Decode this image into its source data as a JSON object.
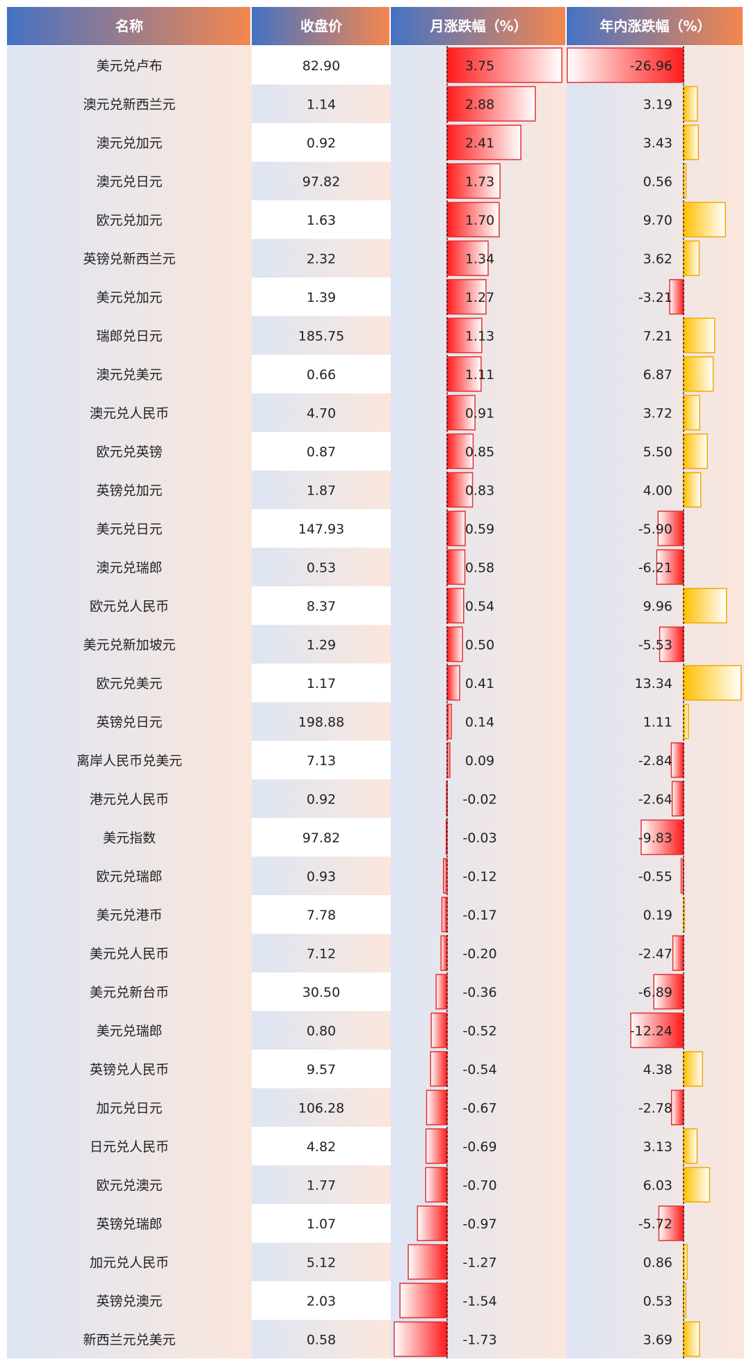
{
  "table": {
    "headers": [
      "名称",
      "收盘价",
      "月涨跌幅（%）",
      "年内涨跌幅（%）"
    ],
    "colors": {
      "header_left": "#4472c4",
      "header_right": "#f4874f",
      "row_tint_a": "#dde5f4",
      "row_tint_b": "#fbe6dc",
      "bar_negative_fill": "#ff1a1a",
      "bar_negative_stroke": "#e03030",
      "bar_positive_fill": "#ffc000",
      "bar_positive_stroke": "#f0a800",
      "axis_line": "#000000"
    }
  },
  "chart_data": {
    "type": "table",
    "columns": [
      "名称",
      "收盘价",
      "月涨跌幅（%）",
      "年内涨跌幅（%）"
    ],
    "rows": [
      {
        "name": "美元兑卢布",
        "close": "82.90",
        "mtd": 3.75,
        "ytd": -26.96
      },
      {
        "name": "澳元兑新西兰元",
        "close": "1.14",
        "mtd": 2.88,
        "ytd": 3.19
      },
      {
        "name": "澳元兑加元",
        "close": "0.92",
        "mtd": 2.41,
        "ytd": 3.43
      },
      {
        "name": "澳元兑日元",
        "close": "97.82",
        "mtd": 1.73,
        "ytd": 0.56
      },
      {
        "name": "欧元兑加元",
        "close": "1.63",
        "mtd": 1.7,
        "ytd": 9.7
      },
      {
        "name": "英镑兑新西兰元",
        "close": "2.32",
        "mtd": 1.34,
        "ytd": 3.62
      },
      {
        "name": "美元兑加元",
        "close": "1.39",
        "mtd": 1.27,
        "ytd": -3.21
      },
      {
        "name": "瑞郎兑日元",
        "close": "185.75",
        "mtd": 1.13,
        "ytd": 7.21
      },
      {
        "name": "澳元兑美元",
        "close": "0.66",
        "mtd": 1.11,
        "ytd": 6.87
      },
      {
        "name": "澳元兑人民币",
        "close": "4.70",
        "mtd": 0.91,
        "ytd": 3.72
      },
      {
        "name": "欧元兑英镑",
        "close": "0.87",
        "mtd": 0.85,
        "ytd": 5.5
      },
      {
        "name": "英镑兑加元",
        "close": "1.87",
        "mtd": 0.83,
        "ytd": 4.0
      },
      {
        "name": "美元兑日元",
        "close": "147.93",
        "mtd": 0.59,
        "ytd": -5.9
      },
      {
        "name": "澳元兑瑞郎",
        "close": "0.53",
        "mtd": 0.58,
        "ytd": -6.21
      },
      {
        "name": "欧元兑人民币",
        "close": "8.37",
        "mtd": 0.54,
        "ytd": 9.96
      },
      {
        "name": "美元兑新加坡元",
        "close": "1.29",
        "mtd": 0.5,
        "ytd": -5.53
      },
      {
        "name": "欧元兑美元",
        "close": "1.17",
        "mtd": 0.41,
        "ytd": 13.34
      },
      {
        "name": "英镑兑日元",
        "close": "198.88",
        "mtd": 0.14,
        "ytd": 1.11
      },
      {
        "name": "离岸人民币兑美元",
        "close": "7.13",
        "mtd": 0.09,
        "ytd": -2.84
      },
      {
        "name": "港元兑人民币",
        "close": "0.92",
        "mtd": -0.02,
        "ytd": -2.64
      },
      {
        "name": "美元指数",
        "close": "97.82",
        "mtd": -0.03,
        "ytd": -9.83
      },
      {
        "name": "欧元兑瑞郎",
        "close": "0.93",
        "mtd": -0.12,
        "ytd": -0.55
      },
      {
        "name": "美元兑港币",
        "close": "7.78",
        "mtd": -0.17,
        "ytd": 0.19
      },
      {
        "name": "美元兑人民币",
        "close": "7.12",
        "mtd": -0.2,
        "ytd": -2.47
      },
      {
        "name": "美元兑新台币",
        "close": "30.50",
        "mtd": -0.36,
        "ytd": -6.89
      },
      {
        "name": "美元兑瑞郎",
        "close": "0.80",
        "mtd": -0.52,
        "ytd": -12.24
      },
      {
        "name": "英镑兑人民币",
        "close": "9.57",
        "mtd": -0.54,
        "ytd": 4.38
      },
      {
        "name": "加元兑日元",
        "close": "106.28",
        "mtd": -0.67,
        "ytd": -2.78
      },
      {
        "name": "日元兑人民币",
        "close": "4.82",
        "mtd": -0.69,
        "ytd": 3.13
      },
      {
        "name": "欧元兑澳元",
        "close": "1.77",
        "mtd": -0.7,
        "ytd": 6.03
      },
      {
        "name": "英镑兑瑞郎",
        "close": "1.07",
        "mtd": -0.97,
        "ytd": -5.72
      },
      {
        "name": "加元兑人民币",
        "close": "5.12",
        "mtd": -1.27,
        "ytd": 0.86
      },
      {
        "name": "英镑兑澳元",
        "close": "2.03",
        "mtd": -1.54,
        "ytd": 0.53
      },
      {
        "name": "新西兰元兑美元",
        "close": "0.58",
        "mtd": -1.73,
        "ytd": 3.69
      }
    ]
  }
}
